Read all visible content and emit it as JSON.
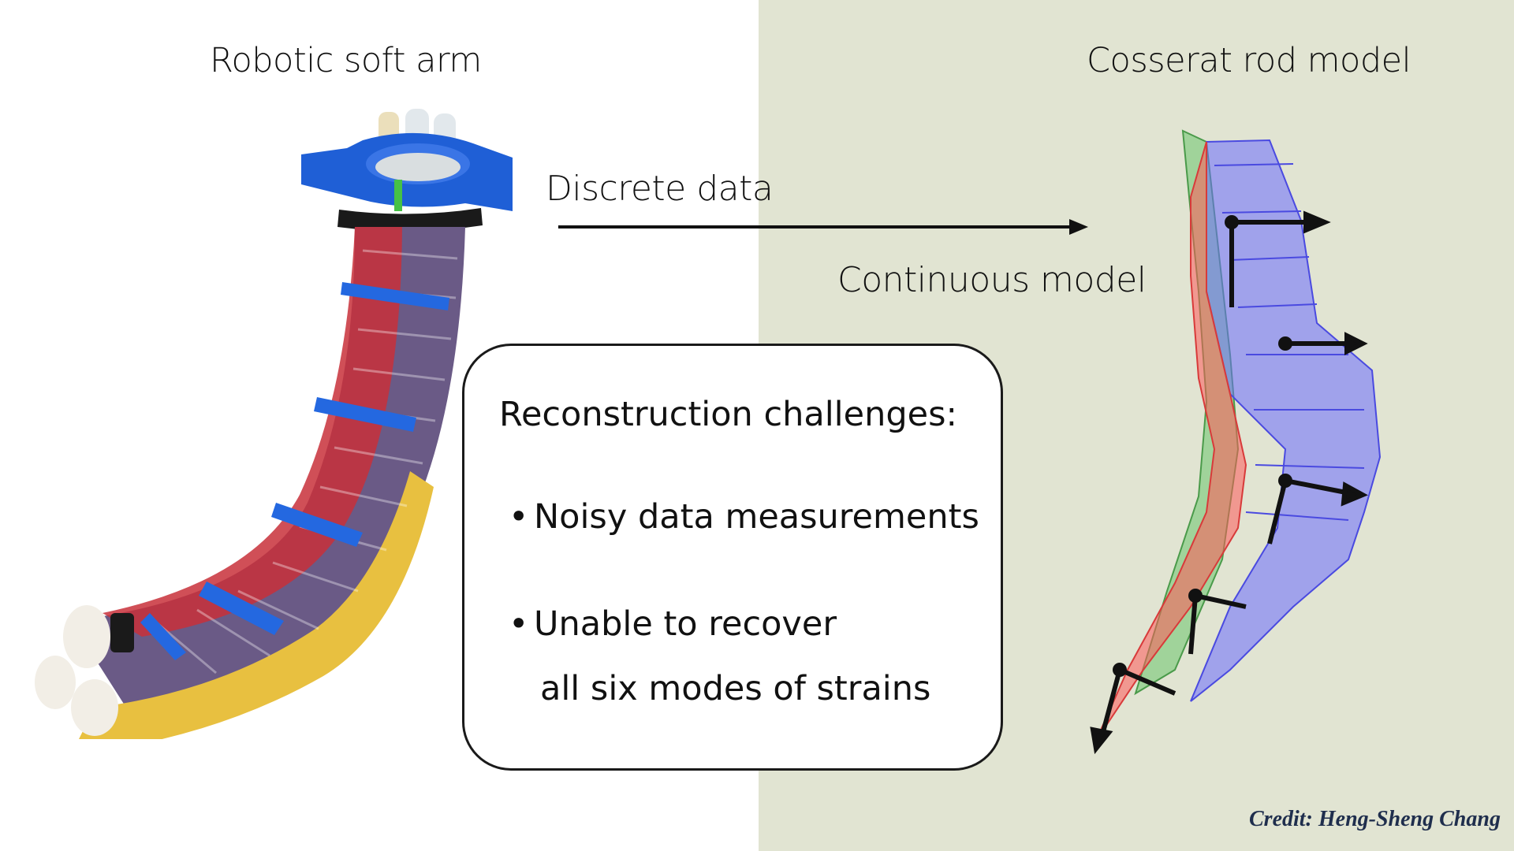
{
  "titles": {
    "left": "Robotic soft arm",
    "right": "Cosserat rod model"
  },
  "arrow": {
    "top_label": "Discrete data",
    "bottom_label": "Continuous model"
  },
  "challenges": {
    "heading": "Reconstruction challenges:",
    "bullets": [
      {
        "text": "Noisy data measurements"
      },
      {
        "text": "Unable to recover",
        "continuation": "all six modes of strains"
      }
    ]
  },
  "credit": "Credit: Heng-Sheng Chang",
  "colors": {
    "right_panel_bg": "#e1e4d2",
    "rod_blue": "#6c6cff",
    "rod_red": "#ff5a5a",
    "rod_green": "#6cc46c",
    "arm_clamp_blue": "#1f5fd6",
    "arm_yellow": "#e8c040",
    "arm_purple": "#6a5a86",
    "arm_red": "#c8303a",
    "credit": "#1f2e4d"
  },
  "images": {
    "left": "robotic-soft-arm-photo",
    "right": "cosserat-rod-3d-render"
  }
}
